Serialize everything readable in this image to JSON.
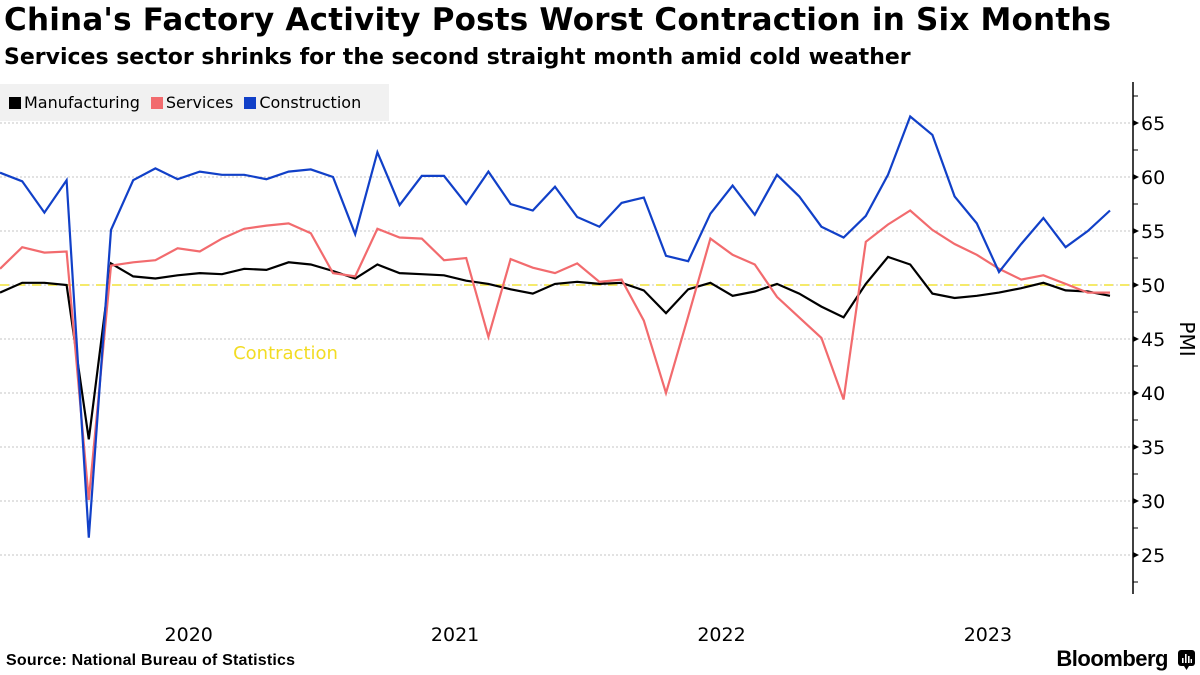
{
  "header": {
    "title": "China's Factory Activity Posts Worst Contraction in Six Months",
    "subtitle": "Services sector shrinks for the second straight month amid cold weather"
  },
  "footer": {
    "source": "Source: National Bureau of Statistics",
    "brand": "Bloomberg",
    "brand_icon": "bloomberg-terminal-icon"
  },
  "chart_data": {
    "type": "line",
    "title": "China's Factory Activity Posts Worst Contraction in Six Months",
    "subtitle": "Services sector shrinks for the second straight month amid cold weather",
    "xlabel": "",
    "ylabel": "PMI",
    "ylim": [
      21.2,
      68.8
    ],
    "yticks": [
      25,
      30,
      35,
      40,
      45,
      50,
      55,
      60,
      65
    ],
    "grid": true,
    "legend_position": "top-left",
    "y_axis_side": "right",
    "x": [
      "2019-10",
      "2019-11",
      "2019-12",
      "2020-01",
      "2020-02",
      "2020-03",
      "2020-04",
      "2020-05",
      "2020-06",
      "2020-07",
      "2020-08",
      "2020-09",
      "2020-10",
      "2020-11",
      "2020-12",
      "2021-01",
      "2021-02",
      "2021-03",
      "2021-04",
      "2021-05",
      "2021-06",
      "2021-07",
      "2021-08",
      "2021-09",
      "2021-10",
      "2021-11",
      "2021-12",
      "2022-01",
      "2022-02",
      "2022-03",
      "2022-04",
      "2022-05",
      "2022-06",
      "2022-07",
      "2022-08",
      "2022-09",
      "2022-10",
      "2022-11",
      "2022-12",
      "2023-01",
      "2023-02",
      "2023-03",
      "2023-04",
      "2023-05",
      "2023-06",
      "2023-07",
      "2023-08",
      "2023-09",
      "2023-10",
      "2023-11",
      "2023-12"
    ],
    "xtick_labels": [
      {
        "label": "2020",
        "at_index": 8.5
      },
      {
        "label": "2021",
        "at_index": 20.5
      },
      {
        "label": "2022",
        "at_index": 32.5
      },
      {
        "label": "2023",
        "at_index": 44.5
      }
    ],
    "reference_line": {
      "value": 50,
      "color": "#f2e33a",
      "style": "dashed"
    },
    "annotation": {
      "text": "Contraction",
      "x_index": 10.5,
      "y": 43.5,
      "color": "#f2dc23"
    },
    "series": [
      {
        "name": "Manufacturing",
        "color": "#000000",
        "values": [
          49.3,
          50.2,
          50.2,
          50.0,
          35.7,
          52.0,
          50.8,
          50.6,
          50.9,
          51.1,
          51.0,
          51.5,
          51.4,
          52.1,
          51.9,
          51.3,
          50.6,
          51.9,
          51.1,
          51.0,
          50.9,
          50.4,
          50.1,
          49.6,
          49.2,
          50.1,
          50.3,
          50.1,
          50.2,
          49.5,
          47.4,
          49.6,
          50.2,
          49.0,
          49.4,
          50.1,
          49.2,
          48.0,
          47.0,
          50.1,
          52.6,
          51.9,
          49.2,
          48.8,
          49.0,
          49.3,
          49.7,
          50.2,
          49.5,
          49.4,
          49.0
        ]
      },
      {
        "name": "Services",
        "color": "#f26b6e",
        "values": [
          51.5,
          53.5,
          53.0,
          53.1,
          30.1,
          51.8,
          52.1,
          52.3,
          53.4,
          53.1,
          54.3,
          55.2,
          55.5,
          55.7,
          54.8,
          51.1,
          50.8,
          55.2,
          54.4,
          54.3,
          52.3,
          52.5,
          45.2,
          52.4,
          51.6,
          51.1,
          52.0,
          50.3,
          50.5,
          46.7,
          40.0,
          47.1,
          54.3,
          52.8,
          51.9,
          48.9,
          47.0,
          45.1,
          39.4,
          54.0,
          55.6,
          56.9,
          55.1,
          53.8,
          52.8,
          51.5,
          50.5,
          50.9,
          50.1,
          49.3,
          49.3
        ]
      },
      {
        "name": "Construction",
        "color": "#1140c8",
        "values": [
          60.4,
          59.6,
          56.7,
          59.7,
          26.6,
          55.1,
          59.7,
          60.8,
          59.8,
          60.5,
          60.2,
          60.2,
          59.8,
          60.5,
          60.7,
          60.0,
          54.7,
          62.3,
          57.4,
          60.1,
          60.1,
          57.5,
          60.5,
          57.5,
          56.9,
          59.1,
          56.3,
          55.4,
          57.6,
          58.1,
          52.7,
          52.2,
          56.6,
          59.2,
          56.5,
          60.2,
          58.2,
          55.4,
          54.4,
          56.4,
          60.2,
          65.6,
          63.9,
          58.2,
          55.7,
          51.2,
          53.8,
          56.2,
          53.5,
          55.0,
          56.9
        ]
      }
    ]
  }
}
